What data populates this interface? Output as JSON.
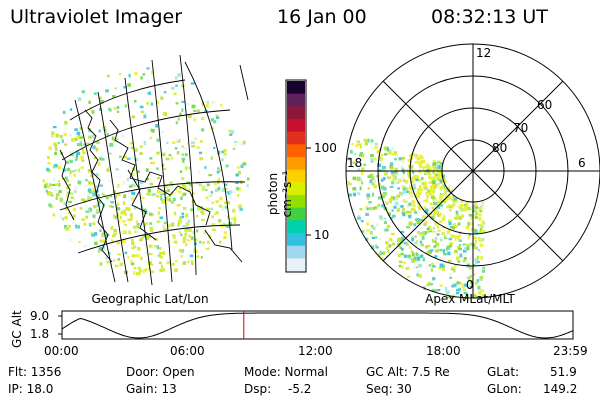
{
  "header": {
    "title": "Ultraviolet Imager",
    "date": "16 Jan 00",
    "time": "08:32:13 UT"
  },
  "geo_panel": {
    "label": "Geographic Lat/Lon"
  },
  "apex_panel": {
    "label": "Apex MLat/MLT",
    "mlt_labels": {
      "top": "12",
      "bottom": "0",
      "left": "18",
      "right": "6"
    },
    "lat_labels": [
      "60",
      "70",
      "80"
    ]
  },
  "colorbar": {
    "unit": "photon cm⁻²s⁻¹",
    "ticks": [
      "100",
      "10"
    ],
    "colors": [
      "#1a0030",
      "#60205a",
      "#8b1838",
      "#c8102e",
      "#e0301e",
      "#ff6000",
      "#ff9c00",
      "#ffd000",
      "#d8f000",
      "#90e000",
      "#40d040",
      "#00d0b0",
      "#30c0e0",
      "#a0d8f0",
      "#e8f0f8"
    ]
  },
  "timeline": {
    "axis_label": "GC Alt",
    "y_ticks": [
      "9.0",
      "1.8"
    ],
    "x_ticks": [
      "00:00",
      "06:00",
      "12:00",
      "18:00",
      "23:59"
    ],
    "current_marker_hours": 8.54
  },
  "info": {
    "flt": "Flt: 1356",
    "ip": "IP: 18.0",
    "door": "Door: Open",
    "gain": "Gain: 13",
    "mode": "Mode: Normal",
    "dsp": "Dsp:",
    "dsp_val": "-5.2",
    "gc_alt": "GC Alt: 7.5 Re",
    "seq": "Seq: 30",
    "glat": "GLat:",
    "glat_val": "51.9",
    "glon": "GLon:",
    "glon_val": "149.2"
  }
}
